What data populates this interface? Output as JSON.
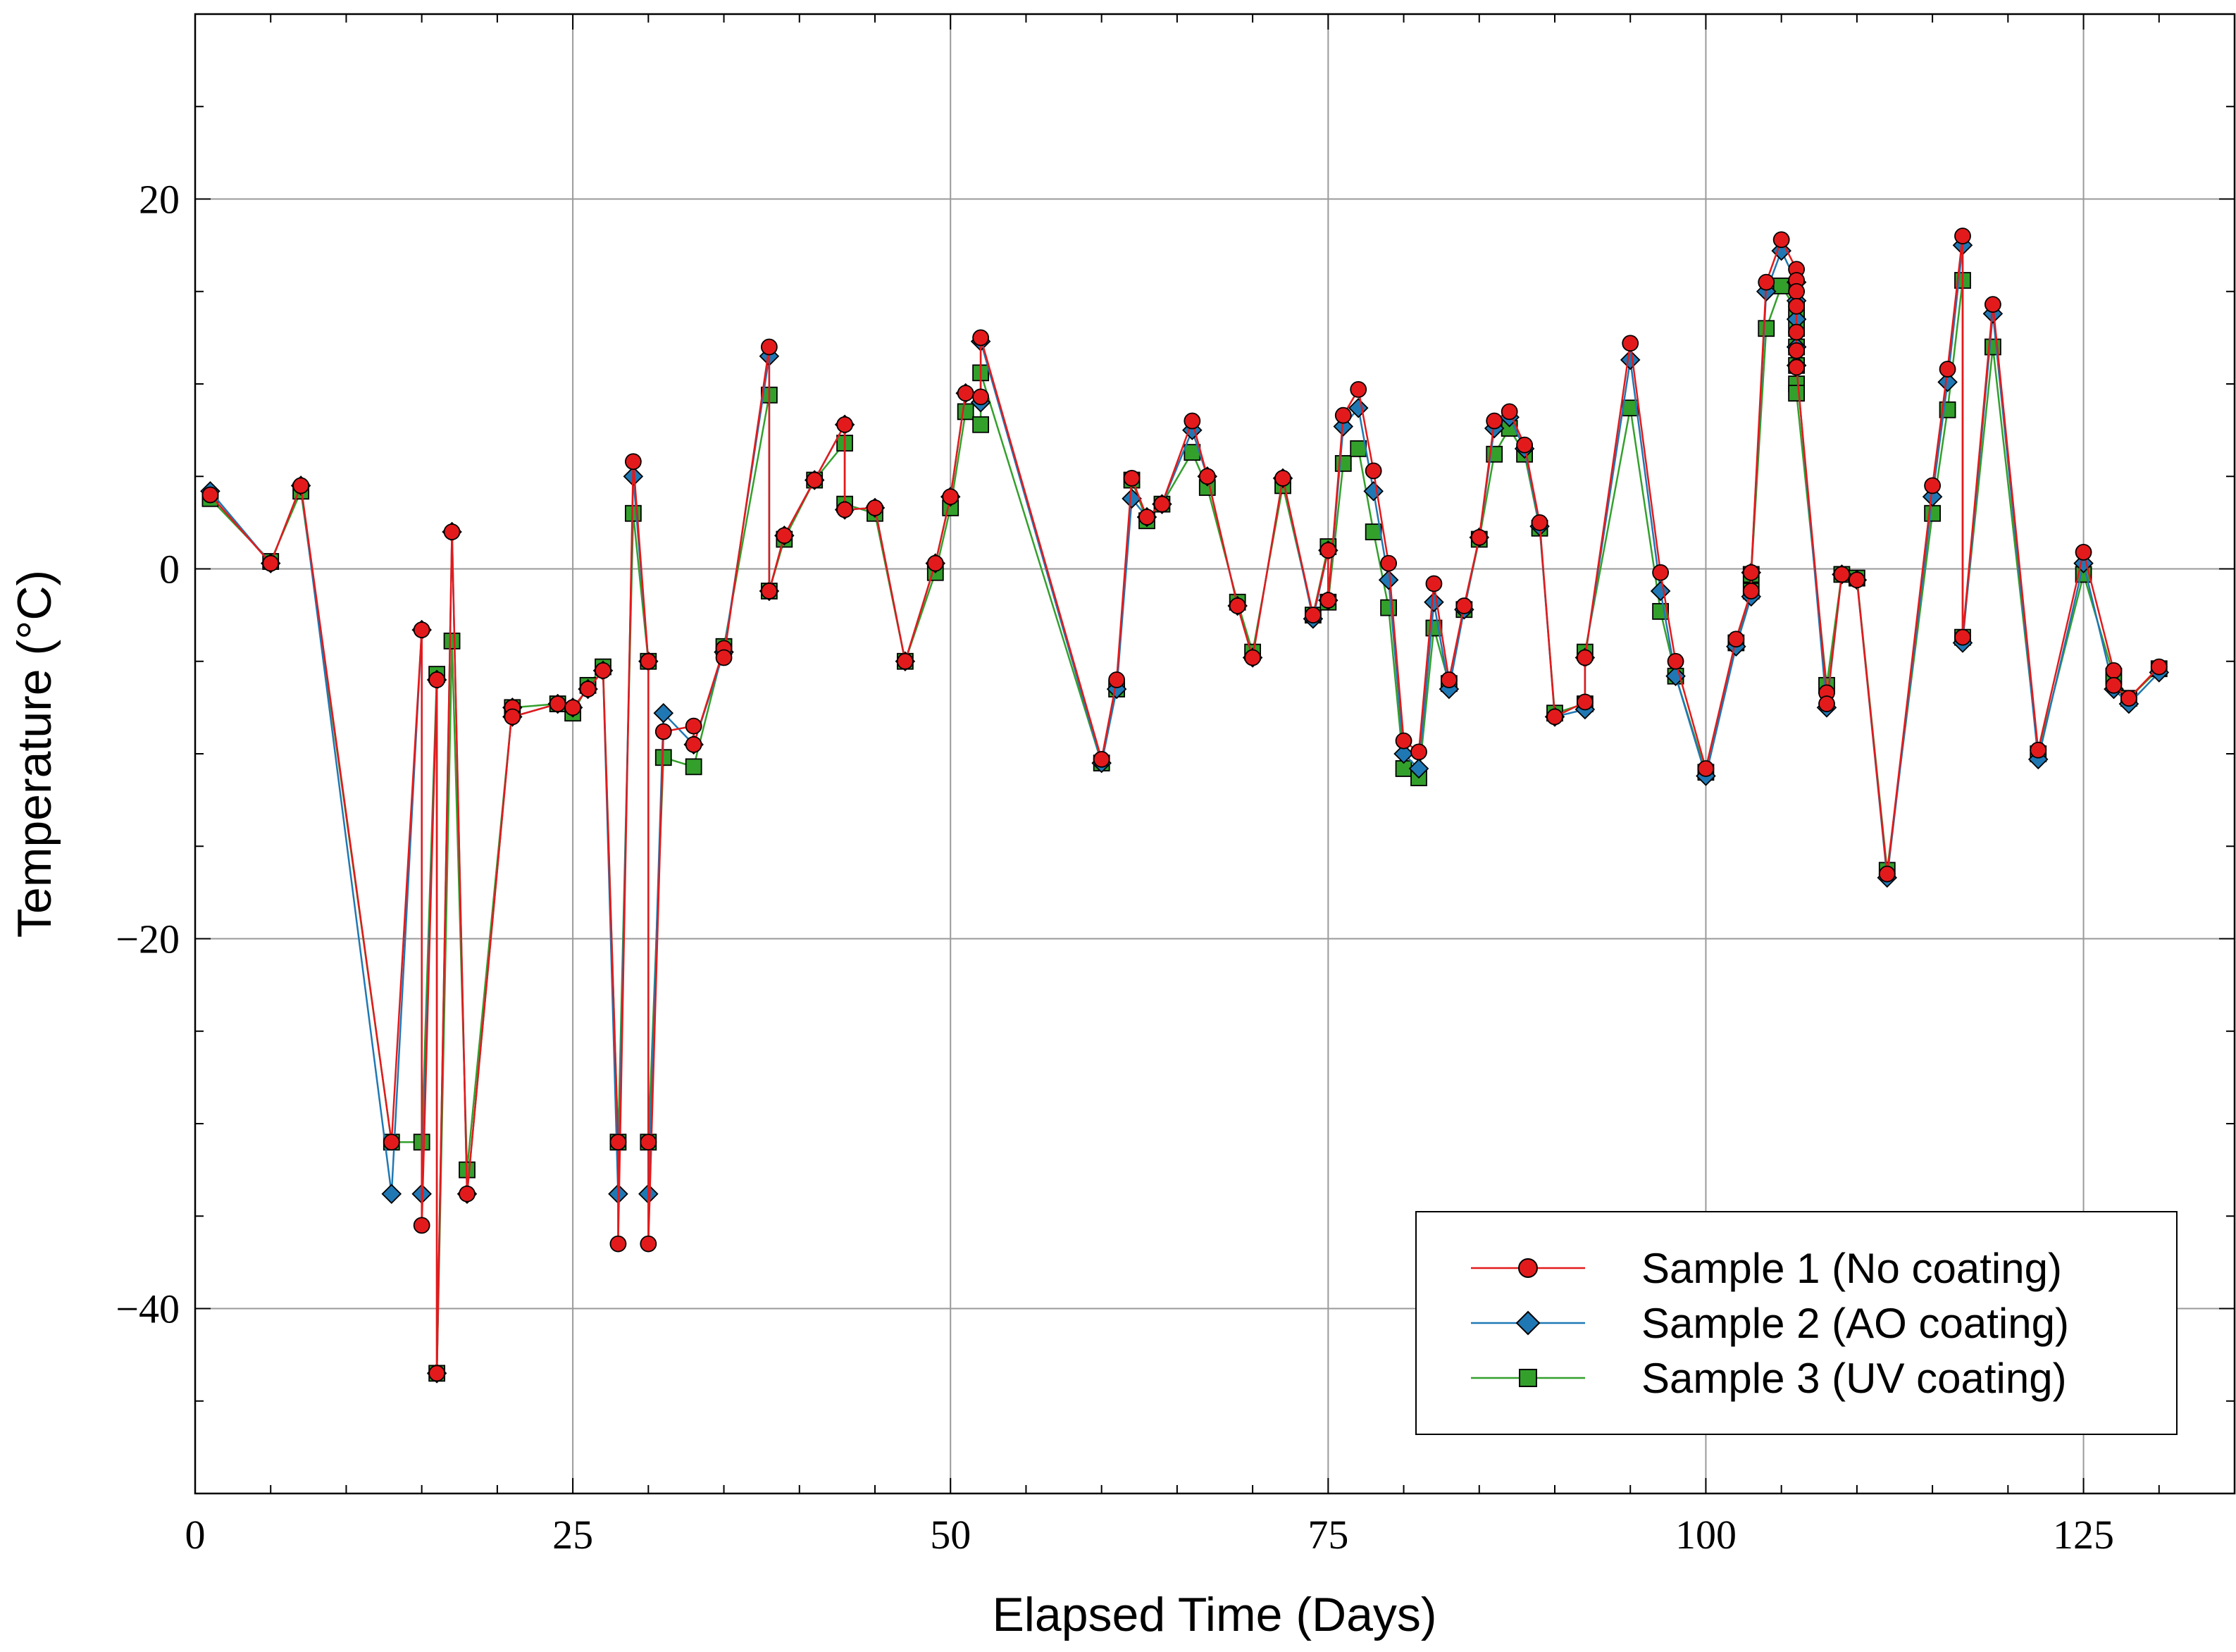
{
  "chart_data": {
    "type": "line",
    "title": "",
    "xlabel": "Elapsed Time (Days)",
    "ylabel": "Temperature (°C)",
    "xlim": [
      0,
      135
    ],
    "ylim": [
      -50,
      30
    ],
    "xticks": [
      0,
      25,
      50,
      75,
      100,
      125
    ],
    "yticks": [
      -40,
      -20,
      0,
      20
    ],
    "grid": true,
    "legend_position": "bottom-right",
    "series": [
      {
        "name": "Sample 1 (No coating)",
        "color": "#e31a1c",
        "marker": "circle",
        "points": [
          [
            1,
            4
          ],
          [
            5,
            0.3
          ],
          [
            7,
            4.5
          ],
          [
            13,
            -31
          ],
          [
            15,
            -3.3
          ],
          [
            15,
            -35.5
          ],
          [
            16,
            -6
          ],
          [
            16,
            -43.5
          ],
          [
            17,
            2
          ],
          [
            18,
            -33.8
          ],
          [
            21,
            -7.5
          ],
          [
            21,
            -8
          ],
          [
            24,
            -7.3
          ],
          [
            25,
            -7.5
          ],
          [
            26,
            -6.5
          ],
          [
            27,
            -5.5
          ],
          [
            28,
            -31
          ],
          [
            28,
            -36.5
          ],
          [
            29,
            5.8
          ],
          [
            30,
            -5
          ],
          [
            30,
            -31
          ],
          [
            30,
            -36.5
          ],
          [
            31,
            -8.8
          ],
          [
            33,
            -8.5
          ],
          [
            33,
            -9.5
          ],
          [
            35,
            -4.3
          ],
          [
            35,
            -4.8
          ],
          [
            38,
            12
          ],
          [
            38,
            -1.2
          ],
          [
            39,
            1.8
          ],
          [
            41,
            4.8
          ],
          [
            43,
            7.8
          ],
          [
            43,
            3.2
          ],
          [
            45,
            3.3
          ],
          [
            47,
            -5
          ],
          [
            49,
            0.3
          ],
          [
            50,
            3.9
          ],
          [
            51,
            9.5
          ],
          [
            52,
            9.3
          ],
          [
            52,
            12.5
          ],
          [
            60,
            -10.3
          ],
          [
            61,
            -6
          ],
          [
            62,
            4.9
          ],
          [
            63,
            2.8
          ],
          [
            64,
            3.5
          ],
          [
            66,
            8
          ],
          [
            67,
            5
          ],
          [
            69,
            -2
          ],
          [
            70,
            -4.8
          ],
          [
            72,
            4.9
          ],
          [
            74,
            -2.5
          ],
          [
            75,
            1
          ],
          [
            75,
            -1.7
          ],
          [
            76,
            8.3
          ],
          [
            77,
            9.7
          ],
          [
            78,
            5.3
          ],
          [
            79,
            0.3
          ],
          [
            80,
            -9.3
          ],
          [
            81,
            -9.9
          ],
          [
            82,
            -0.8
          ],
          [
            83,
            -6
          ],
          [
            84,
            -2
          ],
          [
            85,
            1.7
          ],
          [
            86,
            8
          ],
          [
            87,
            8.5
          ],
          [
            88,
            6.7
          ],
          [
            89,
            2.5
          ],
          [
            90,
            -8
          ],
          [
            92,
            -7.2
          ],
          [
            92,
            -4.8
          ],
          [
            95,
            12.2
          ],
          [
            97,
            -0.2
          ],
          [
            98,
            -5
          ],
          [
            100,
            -10.8
          ],
          [
            102,
            -3.8
          ],
          [
            103,
            -1.2
          ],
          [
            103,
            -0.2
          ],
          [
            104,
            15.5
          ],
          [
            105,
            17.8
          ],
          [
            106,
            16.2
          ],
          [
            106,
            15.6
          ],
          [
            106,
            15
          ],
          [
            106,
            14.2
          ],
          [
            106,
            12.8
          ],
          [
            106,
            11.8
          ],
          [
            106,
            10.9
          ],
          [
            108,
            -6.7
          ],
          [
            108,
            -7.3
          ],
          [
            109,
            -0.3
          ],
          [
            110,
            -0.6
          ],
          [
            112,
            -16.5
          ],
          [
            115,
            4.5
          ],
          [
            116,
            10.8
          ],
          [
            117,
            18
          ],
          [
            117,
            -3.7
          ],
          [
            119,
            14.3
          ],
          [
            122,
            -9.8
          ],
          [
            125,
            0.9
          ],
          [
            127,
            -5.5
          ],
          [
            127,
            -6.3
          ],
          [
            128,
            -7
          ],
          [
            130,
            -5.3
          ]
        ]
      },
      {
        "name": "Sample 2 (AO coating)",
        "color": "#1f78b4",
        "marker": "diamond",
        "points": [
          [
            1,
            4.2
          ],
          [
            5,
            0.3
          ],
          [
            7,
            4.5
          ],
          [
            13,
            -33.8
          ],
          [
            15,
            -3.3
          ],
          [
            15,
            -33.8
          ],
          [
            16,
            -6
          ],
          [
            16,
            -43.5
          ],
          [
            17,
            2
          ],
          [
            18,
            -33.8
          ],
          [
            21,
            -7.5
          ],
          [
            21,
            -8
          ],
          [
            24,
            -7.3
          ],
          [
            25,
            -7.5
          ],
          [
            26,
            -6.5
          ],
          [
            27,
            -5.5
          ],
          [
            28,
            -33.8
          ],
          [
            29,
            5
          ],
          [
            30,
            -5
          ],
          [
            30,
            -33.8
          ],
          [
            31,
            -7.8
          ],
          [
            33,
            -9.5
          ],
          [
            35,
            -4.5
          ],
          [
            38,
            11.5
          ],
          [
            38,
            -1.2
          ],
          [
            39,
            1.8
          ],
          [
            41,
            4.8
          ],
          [
            43,
            7.8
          ],
          [
            43,
            3.2
          ],
          [
            45,
            3.3
          ],
          [
            47,
            -5
          ],
          [
            49,
            0.3
          ],
          [
            50,
            3.9
          ],
          [
            51,
            9.5
          ],
          [
            52,
            9
          ],
          [
            52,
            12.3
          ],
          [
            60,
            -10.5
          ],
          [
            61,
            -6.5
          ],
          [
            62,
            3.8
          ],
          [
            63,
            2.8
          ],
          [
            64,
            3.5
          ],
          [
            66,
            7.5
          ],
          [
            67,
            5
          ],
          [
            69,
            -2
          ],
          [
            70,
            -4.8
          ],
          [
            72,
            4.9
          ],
          [
            74,
            -2.7
          ],
          [
            75,
            1
          ],
          [
            75,
            -1.7
          ],
          [
            76,
            7.7
          ],
          [
            77,
            8.7
          ],
          [
            78,
            4.2
          ],
          [
            79,
            -0.6
          ],
          [
            80,
            -10
          ],
          [
            81,
            -10.8
          ],
          [
            82,
            -1.8
          ],
          [
            83,
            -6.5
          ],
          [
            84,
            -2.2
          ],
          [
            85,
            1.7
          ],
          [
            86,
            7.6
          ],
          [
            87,
            8.2
          ],
          [
            88,
            6.5
          ],
          [
            89,
            2.3
          ],
          [
            90,
            -8
          ],
          [
            92,
            -7.6
          ],
          [
            92,
            -4.8
          ],
          [
            95,
            11.3
          ],
          [
            97,
            -1.2
          ],
          [
            98,
            -5.8
          ],
          [
            100,
            -11.2
          ],
          [
            102,
            -4.2
          ],
          [
            103,
            -1.5
          ],
          [
            103,
            -0.2
          ],
          [
            104,
            15
          ],
          [
            105,
            17.2
          ],
          [
            106,
            15.5
          ],
          [
            106,
            14.5
          ],
          [
            106,
            13.5
          ],
          [
            106,
            12
          ],
          [
            106,
            11
          ],
          [
            108,
            -7.5
          ],
          [
            109,
            -0.3
          ],
          [
            110,
            -0.6
          ],
          [
            112,
            -16.7
          ],
          [
            115,
            3.9
          ],
          [
            116,
            10.1
          ],
          [
            117,
            17.5
          ],
          [
            117,
            -4
          ],
          [
            119,
            13.8
          ],
          [
            122,
            -10.3
          ],
          [
            125,
            0.3
          ],
          [
            127,
            -6.5
          ],
          [
            128,
            -7.3
          ],
          [
            130,
            -5.6
          ]
        ]
      },
      {
        "name": "Sample 3 (UV coating)",
        "color": "#33a02c",
        "marker": "square",
        "points": [
          [
            1,
            3.8
          ],
          [
            5,
            0.4
          ],
          [
            7,
            4.2
          ],
          [
            13,
            -31
          ],
          [
            15,
            -31
          ],
          [
            16,
            -5.7
          ],
          [
            16,
            -43.5
          ],
          [
            17,
            -3.9
          ],
          [
            18,
            -32.5
          ],
          [
            21,
            -7.5
          ],
          [
            24,
            -7.3
          ],
          [
            25,
            -7.8
          ],
          [
            26,
            -6.3
          ],
          [
            27,
            -5.3
          ],
          [
            28,
            -31
          ],
          [
            29,
            3
          ],
          [
            30,
            -5
          ],
          [
            30,
            -31
          ],
          [
            31,
            -10.2
          ],
          [
            33,
            -10.7
          ],
          [
            35,
            -4.2
          ],
          [
            38,
            9.4
          ],
          [
            38,
            -1.2
          ],
          [
            39,
            1.6
          ],
          [
            41,
            4.8
          ],
          [
            43,
            6.8
          ],
          [
            43,
            3.5
          ],
          [
            45,
            3
          ],
          [
            47,
            -5
          ],
          [
            49,
            -0.2
          ],
          [
            50,
            3.3
          ],
          [
            51,
            8.5
          ],
          [
            52,
            7.8
          ],
          [
            52,
            10.6
          ],
          [
            60,
            -10.5
          ],
          [
            61,
            -6.5
          ],
          [
            62,
            4.8
          ],
          [
            63,
            2.6
          ],
          [
            64,
            3.5
          ],
          [
            66,
            6.3
          ],
          [
            67,
            4.4
          ],
          [
            69,
            -1.8
          ],
          [
            70,
            -4.5
          ],
          [
            72,
            4.5
          ],
          [
            74,
            -2.5
          ],
          [
            75,
            1.2
          ],
          [
            75,
            -1.8
          ],
          [
            76,
            5.7
          ],
          [
            77,
            6.5
          ],
          [
            78,
            2
          ],
          [
            79,
            -2.1
          ],
          [
            80,
            -10.8
          ],
          [
            81,
            -11.3
          ],
          [
            82,
            -3.2
          ],
          [
            83,
            -6.2
          ],
          [
            84,
            -2.2
          ],
          [
            85,
            1.6
          ],
          [
            86,
            6.2
          ],
          [
            87,
            7.6
          ],
          [
            88,
            6.2
          ],
          [
            89,
            2.2
          ],
          [
            90,
            -7.8
          ],
          [
            92,
            -7.3
          ],
          [
            92,
            -4.5
          ],
          [
            95,
            8.7
          ],
          [
            97,
            -2.3
          ],
          [
            98,
            -5.8
          ],
          [
            100,
            -11
          ],
          [
            102,
            -4
          ],
          [
            103,
            -1.2
          ],
          [
            103,
            -0.3
          ],
          [
            104,
            13
          ],
          [
            105,
            15.3
          ],
          [
            106,
            14
          ],
          [
            106,
            13
          ],
          [
            106,
            12
          ],
          [
            106,
            11
          ],
          [
            106,
            10
          ],
          [
            106,
            9.5
          ],
          [
            108,
            -6.3
          ],
          [
            109,
            -0.3
          ],
          [
            110,
            -0.5
          ],
          [
            112,
            -16.3
          ],
          [
            115,
            3
          ],
          [
            116,
            8.6
          ],
          [
            117,
            15.6
          ],
          [
            117,
            -3.7
          ],
          [
            119,
            12
          ],
          [
            122,
            -10
          ],
          [
            125,
            -0.3
          ],
          [
            127,
            -5.8
          ],
          [
            128,
            -7
          ],
          [
            130,
            -5.4
          ]
        ]
      }
    ]
  }
}
